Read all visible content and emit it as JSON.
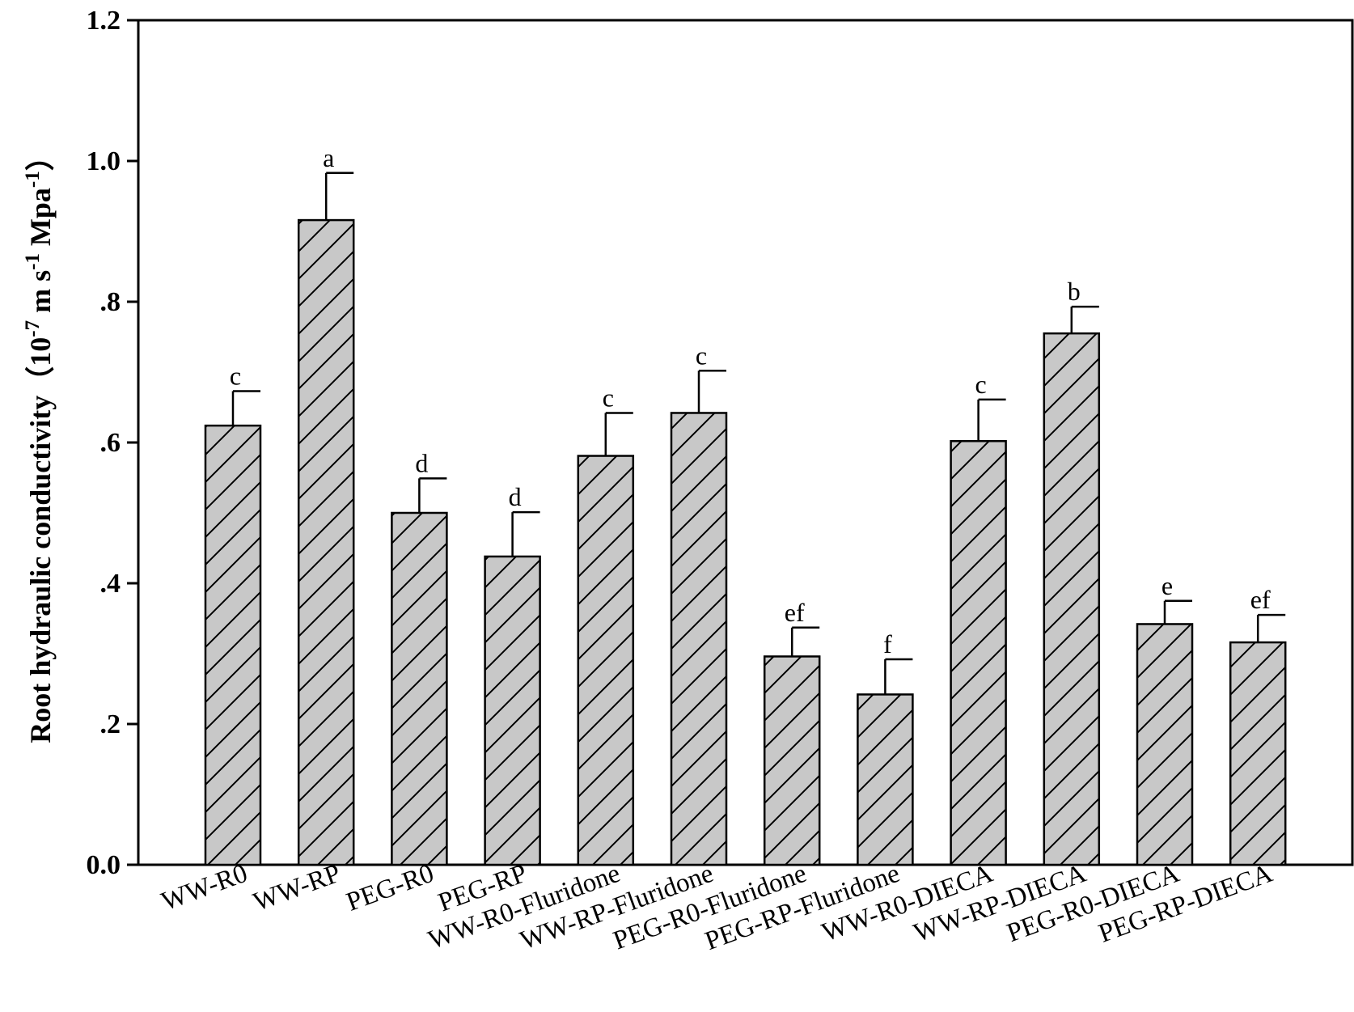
{
  "chart_data": {
    "type": "bar",
    "title": "",
    "xlabel": "",
    "ylabel": "Root hydraulic conductivity（10",
    "ylabel_sup1": "-7",
    "ylabel_mid": " m s",
    "ylabel_sup2": "-1",
    "ylabel_mid2": " Mpa",
    "ylabel_sup3": "-1",
    "ylabel_end": "）",
    "ylim": [
      0,
      1.2
    ],
    "yticks": [
      0,
      0.2,
      0.4,
      0.6,
      0.8,
      1.0,
      1.2
    ],
    "ytick_labels": [
      "0.0",
      ".2",
      ".4",
      ".6",
      ".8",
      "1.0",
      "1.2"
    ],
    "grid": false,
    "legend": "none",
    "bar_fill": "#c8c8c8",
    "bar_pattern": "diagonal-hatch",
    "categories": [
      "WW-R0",
      "WW-RP",
      "PEG-R0",
      "PEG-RP",
      "WW-R0-Fluridone",
      "WW-RP-Fluridone",
      "PEG-R0-Fluridone",
      "PEG-RP-Fluridone",
      "WW-R0-DIECA",
      "WW-RP-DIECA",
      "PEG-R0-DIECA",
      "PEG-RP-DIECA"
    ],
    "values": [
      0.624,
      0.916,
      0.5,
      0.438,
      0.581,
      0.642,
      0.296,
      0.242,
      0.602,
      0.755,
      0.342,
      0.316
    ],
    "errors": [
      0.049,
      0.067,
      0.049,
      0.063,
      0.061,
      0.06,
      0.041,
      0.05,
      0.059,
      0.038,
      0.033,
      0.039
    ],
    "significance_letters": [
      "c",
      "a",
      "d",
      "d",
      "c",
      "c",
      "ef",
      "f",
      "c",
      "b",
      "e",
      "ef"
    ]
  }
}
